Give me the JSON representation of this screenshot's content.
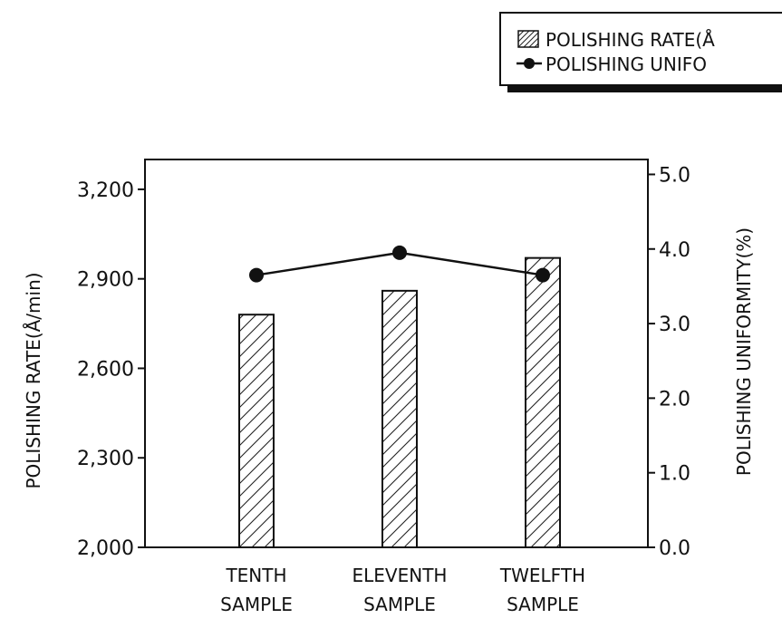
{
  "legend": {
    "rate_label": "POLISHING RATE(Å",
    "uniformity_label": "POLISHING UNIFO"
  },
  "chart_data": {
    "type": "bar",
    "categories": [
      [
        "TENTH",
        "SAMPLE"
      ],
      [
        "ELEVENTH",
        "SAMPLE"
      ],
      [
        "TWELFTH",
        "SAMPLE"
      ]
    ],
    "series": [
      {
        "name": "POLISHING RATE(Å",
        "axis": "left",
        "kind": "bar",
        "values": [
          2780,
          2860,
          2970
        ]
      },
      {
        "name": "POLISHING UNIFO",
        "axis": "right",
        "kind": "line",
        "values": [
          3.65,
          3.95,
          3.65
        ]
      }
    ],
    "ylabel": "POLISHING RATE(Å/min)",
    "y2label": "POLISHING UNIFORMITY(%)",
    "ylim": [
      2000,
      3300
    ],
    "y2lim": [
      0.0,
      5.2
    ],
    "yticks": [
      2000,
      2300,
      2600,
      2900,
      3200
    ],
    "ytick_labels": [
      "2,000",
      "2,300",
      "2,600",
      "2,900",
      "3,200"
    ],
    "y2ticks": [
      0.0,
      1.0,
      2.0,
      3.0,
      4.0,
      5.0
    ],
    "y2tick_labels": [
      "0.0",
      "1.0",
      "2.0",
      "3.0",
      "4.0",
      "5.0"
    ],
    "bar_fill": "hatched",
    "grid": false,
    "legend_position": "top-right"
  }
}
